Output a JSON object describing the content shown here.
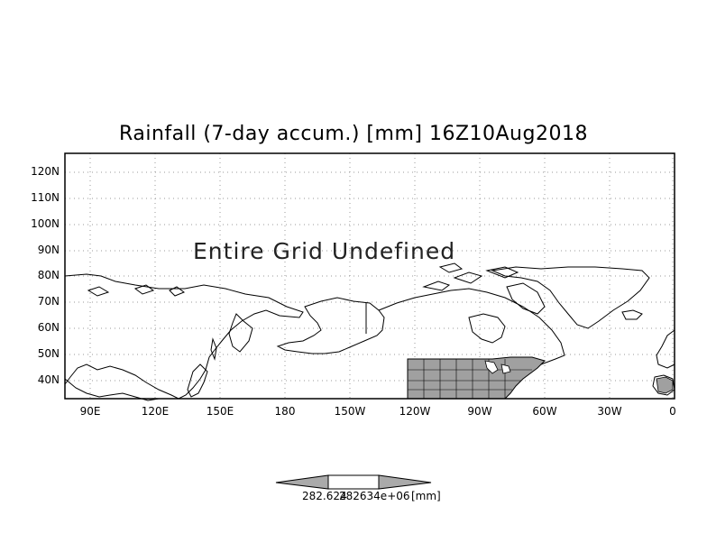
{
  "title": "Rainfall (7-day accum.) [mm] 16Z10Aug2018",
  "overlay_text": "Entire Grid Undefined",
  "map": {
    "lat_labels": [
      "120N",
      "110N",
      "100N",
      "90N",
      "80N",
      "70N",
      "60N",
      "50N",
      "40N"
    ],
    "lon_labels": [
      "90E",
      "120E",
      "150E",
      "180",
      "150W",
      "120W",
      "90W",
      "60W",
      "30W",
      "0"
    ],
    "grid_lines": "dotted",
    "land_fill_region": "United States (gray)"
  },
  "colorbar": {
    "left_value": "282.624",
    "right_value": "282634e+06",
    "units": "[mm]",
    "colors": {
      "arrow_fill": "#aaaaaa",
      "center_fill": "#ffffff"
    }
  },
  "colors": {
    "frame": "#000000",
    "grid": "#999999",
    "us_fill": "#a0a0a0"
  }
}
